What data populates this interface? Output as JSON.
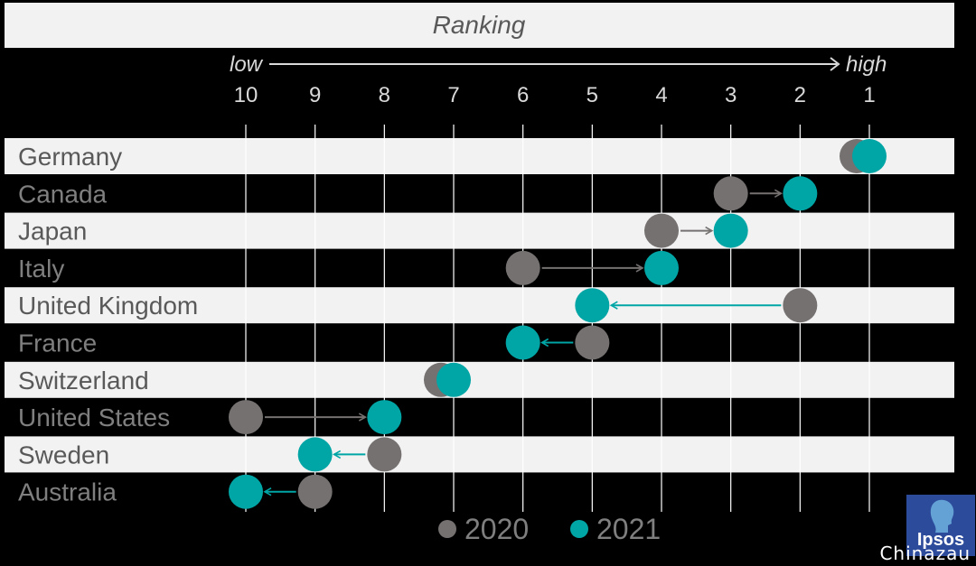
{
  "chart_data": {
    "type": "dumbbell",
    "title": "Ranking",
    "direction": {
      "low": "low",
      "high": "high"
    },
    "xlim": [
      10,
      1
    ],
    "ticks": [
      "10",
      "9",
      "8",
      "7",
      "6",
      "5",
      "4",
      "3",
      "2",
      "1"
    ],
    "series": [
      {
        "name": "2020",
        "color": "#767171"
      },
      {
        "name": "2021",
        "color": "#00a5a5"
      }
    ],
    "rows": [
      {
        "country": "Germany",
        "r2020": 1,
        "r2021": 1
      },
      {
        "country": "Canada",
        "r2020": 3,
        "r2021": 2
      },
      {
        "country": "Japan",
        "r2020": 4,
        "r2021": 3
      },
      {
        "country": "Italy",
        "r2020": 6,
        "r2021": 4
      },
      {
        "country": "United Kingdom",
        "r2020": 2,
        "r2021": 5
      },
      {
        "country": "France",
        "r2020": 5,
        "r2021": 6
      },
      {
        "country": "Switzerland",
        "r2020": 7,
        "r2021": 7
      },
      {
        "country": "United States",
        "r2020": 10,
        "r2021": 8
      },
      {
        "country": "Sweden",
        "r2020": 8,
        "r2021": 9
      },
      {
        "country": "Australia",
        "r2020": 9,
        "r2021": 10
      }
    ],
    "grid": true,
    "legend": "bottom-center"
  },
  "logo": {
    "text": "Ipsos"
  },
  "watermark": "Chinazau"
}
